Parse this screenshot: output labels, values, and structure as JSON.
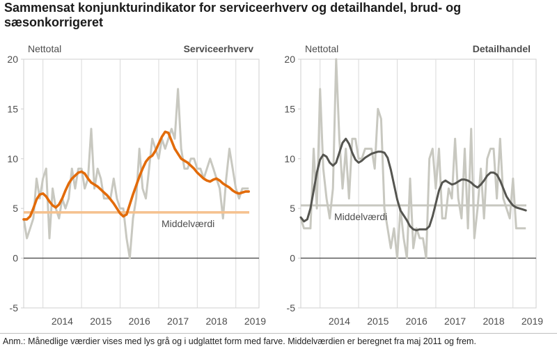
{
  "title": "Sammensat konjunkturindikator for serviceerhverv og detailhandel, brud- og sæsonkorrigeret",
  "note": "Anm.: Månedlige værdier vises med lys grå og i udglattet form med farve. Middelværdien er beregnet fra maj 2011 og frem.",
  "colors": {
    "raw": "#c8c8c0",
    "service_smooth": "#e26b0a",
    "service_mean": "#f5c18e",
    "retail_smooth": "#555550",
    "retail_mean": "#c8c8c0",
    "zero_line": "#4d4d4d",
    "grid": "#d9d9d9",
    "frame": "#cfcfcf",
    "text": "#4d4d4d"
  },
  "chart_data": [
    {
      "type": "line",
      "title": "Serviceerhverv",
      "ylabel": "Nettotal",
      "ylim": [
        -5,
        20
      ],
      "yticks": [
        -5,
        0,
        5,
        10,
        15,
        20
      ],
      "xlim": [
        2013.5,
        2019.6
      ],
      "xticks": [
        2014,
        2015,
        2016,
        2017,
        2018,
        2019
      ],
      "mean_label": "Middelværdi",
      "mean": 4.6,
      "series": [
        {
          "name": "Månedlige værdier",
          "x": [
            2013.5,
            2013.583,
            2013.667,
            2013.75,
            2013.833,
            2013.917,
            2014.0,
            2014.083,
            2014.167,
            2014.25,
            2014.333,
            2014.417,
            2014.5,
            2014.583,
            2014.667,
            2014.75,
            2014.833,
            2014.917,
            2015.0,
            2015.083,
            2015.167,
            2015.25,
            2015.333,
            2015.417,
            2015.5,
            2015.583,
            2015.667,
            2015.75,
            2015.833,
            2015.917,
            2016.0,
            2016.083,
            2016.167,
            2016.25,
            2016.333,
            2016.417,
            2016.5,
            2016.583,
            2016.667,
            2016.75,
            2016.833,
            2016.917,
            2017.0,
            2017.083,
            2017.167,
            2017.25,
            2017.333,
            2017.417,
            2017.5,
            2017.583,
            2017.667,
            2017.75,
            2017.833,
            2017.917,
            2018.0,
            2018.083,
            2018.167,
            2018.25,
            2018.333,
            2018.417,
            2018.5,
            2018.583,
            2018.667,
            2018.75,
            2018.833,
            2018.917,
            2019.0,
            2019.083,
            2019.167,
            2019.25,
            2019.333
          ],
          "values": [
            4,
            2,
            3,
            4,
            8,
            6,
            8,
            9,
            2,
            7,
            5,
            4,
            6,
            5,
            6,
            9,
            7,
            9,
            9,
            7,
            8,
            13,
            7,
            9,
            8,
            6,
            6,
            6,
            8,
            6,
            5,
            5,
            2,
            0,
            4,
            6,
            11,
            7,
            6,
            9,
            12,
            11,
            10,
            12,
            11,
            12,
            13,
            12,
            17,
            11,
            9,
            9,
            10,
            10,
            9,
            9,
            8,
            9,
            10,
            9,
            8,
            7,
            4,
            8,
            11,
            9,
            7,
            6,
            7,
            7,
            7
          ]
        },
        {
          "name": "Udglattet",
          "x": [
            2013.5,
            2013.583,
            2013.667,
            2013.75,
            2013.833,
            2013.917,
            2014.0,
            2014.083,
            2014.167,
            2014.25,
            2014.333,
            2014.417,
            2014.5,
            2014.583,
            2014.667,
            2014.75,
            2014.833,
            2014.917,
            2015.0,
            2015.083,
            2015.167,
            2015.25,
            2015.333,
            2015.417,
            2015.5,
            2015.583,
            2015.667,
            2015.75,
            2015.833,
            2015.917,
            2016.0,
            2016.083,
            2016.167,
            2016.25,
            2016.333,
            2016.417,
            2016.5,
            2016.583,
            2016.667,
            2016.75,
            2016.833,
            2016.917,
            2017.0,
            2017.083,
            2017.167,
            2017.25,
            2017.333,
            2017.417,
            2017.5,
            2017.583,
            2017.667,
            2017.75,
            2017.833,
            2017.917,
            2018.0,
            2018.083,
            2018.167,
            2018.25,
            2018.333,
            2018.417,
            2018.5,
            2018.583,
            2018.667,
            2018.75,
            2018.833,
            2018.917,
            2019.0,
            2019.083,
            2019.167,
            2019.25,
            2019.333
          ],
          "values": [
            3.9,
            3.9,
            4.2,
            5.0,
            5.9,
            6.4,
            6.5,
            6.2,
            5.7,
            5.3,
            5.1,
            5.4,
            6.0,
            6.8,
            7.5,
            8.0,
            8.3,
            8.6,
            8.7,
            8.5,
            8.0,
            7.6,
            7.4,
            7.2,
            6.9,
            6.6,
            6.3,
            5.9,
            5.5,
            5.0,
            4.5,
            4.2,
            4.4,
            5.4,
            6.4,
            7.3,
            8.2,
            9.0,
            9.7,
            10.1,
            10.3,
            10.8,
            11.5,
            12.2,
            12.7,
            12.6,
            11.8,
            11.0,
            10.5,
            10.0,
            9.8,
            9.6,
            9.3,
            9.0,
            8.6,
            8.3,
            8.0,
            7.8,
            7.7,
            7.9,
            8.0,
            7.8,
            7.5,
            7.3,
            7.1,
            6.8,
            6.6,
            6.5,
            6.6,
            6.7,
            6.7
          ]
        }
      ]
    },
    {
      "type": "line",
      "title": "Detailhandel",
      "ylabel": "Nettotal",
      "ylim": [
        -5,
        20
      ],
      "yticks": [
        -5,
        0,
        5,
        10,
        15,
        20
      ],
      "xlim": [
        2013.5,
        2019.6
      ],
      "xticks": [
        2014,
        2015,
        2016,
        2017,
        2018,
        2019
      ],
      "mean_label": "Middelværdi",
      "mean": 5.3,
      "series": [
        {
          "name": "Månedlige værdier",
          "x": [
            2013.5,
            2013.583,
            2013.667,
            2013.75,
            2013.833,
            2013.917,
            2014.0,
            2014.083,
            2014.167,
            2014.25,
            2014.333,
            2014.417,
            2014.5,
            2014.583,
            2014.667,
            2014.75,
            2014.833,
            2014.917,
            2015.0,
            2015.083,
            2015.167,
            2015.25,
            2015.333,
            2015.417,
            2015.5,
            2015.583,
            2015.667,
            2015.75,
            2015.833,
            2015.917,
            2016.0,
            2016.083,
            2016.167,
            2016.25,
            2016.333,
            2016.417,
            2016.5,
            2016.583,
            2016.667,
            2016.75,
            2016.833,
            2016.917,
            2017.0,
            2017.083,
            2017.167,
            2017.25,
            2017.333,
            2017.417,
            2017.5,
            2017.583,
            2017.667,
            2017.75,
            2017.833,
            2017.917,
            2018.0,
            2018.083,
            2018.167,
            2018.25,
            2018.333,
            2018.417,
            2018.5,
            2018.583,
            2018.667,
            2018.75,
            2018.833,
            2018.917,
            2019.0,
            2019.083,
            2019.167,
            2019.25,
            2019.333
          ],
          "values": [
            4,
            3,
            3,
            3,
            11,
            5,
            17,
            9,
            6,
            4,
            7,
            20,
            12,
            7,
            11,
            6,
            12,
            12,
            10,
            10,
            11,
            11,
            11,
            9,
            15,
            14,
            5,
            3,
            1,
            3,
            0,
            5,
            2,
            0,
            8,
            1,
            3,
            2,
            2,
            0,
            10,
            11,
            7,
            11,
            4,
            4,
            7,
            6,
            12,
            6,
            4,
            11,
            3,
            13,
            2,
            5,
            9,
            4,
            10,
            11,
            11,
            6,
            12,
            6,
            5,
            4,
            8,
            3,
            3,
            3,
            3
          ]
        },
        {
          "name": "Udglattet",
          "x": [
            2013.5,
            2013.583,
            2013.667,
            2013.75,
            2013.833,
            2013.917,
            2014.0,
            2014.083,
            2014.167,
            2014.25,
            2014.333,
            2014.417,
            2014.5,
            2014.583,
            2014.667,
            2014.75,
            2014.833,
            2014.917,
            2015.0,
            2015.083,
            2015.167,
            2015.25,
            2015.333,
            2015.417,
            2015.5,
            2015.583,
            2015.667,
            2015.75,
            2015.833,
            2015.917,
            2016.0,
            2016.083,
            2016.167,
            2016.25,
            2016.333,
            2016.417,
            2016.5,
            2016.583,
            2016.667,
            2016.75,
            2016.833,
            2016.917,
            2017.0,
            2017.083,
            2017.167,
            2017.25,
            2017.333,
            2017.417,
            2017.5,
            2017.583,
            2017.667,
            2017.75,
            2017.833,
            2017.917,
            2018.0,
            2018.083,
            2018.167,
            2018.25,
            2018.333,
            2018.417,
            2018.5,
            2018.583,
            2018.667,
            2018.75,
            2018.833,
            2018.917,
            2019.0,
            2019.083,
            2019.167,
            2019.25,
            2019.333
          ],
          "values": [
            4.1,
            3.7,
            3.9,
            5.0,
            6.8,
            8.6,
            9.9,
            10.4,
            10.2,
            9.6,
            9.3,
            9.6,
            10.6,
            11.6,
            12.0,
            11.5,
            10.6,
            9.9,
            9.6,
            9.8,
            10.1,
            10.3,
            10.5,
            10.6,
            10.7,
            10.7,
            10.6,
            10.1,
            8.9,
            7.4,
            5.9,
            4.8,
            4.3,
            3.8,
            3.2,
            2.9,
            2.8,
            2.9,
            2.9,
            2.9,
            3.2,
            4.2,
            5.5,
            6.8,
            7.6,
            7.8,
            7.6,
            7.4,
            7.5,
            7.7,
            7.9,
            7.9,
            7.8,
            7.6,
            7.3,
            7.1,
            7.4,
            7.8,
            8.3,
            8.6,
            8.6,
            8.4,
            7.8,
            7.0,
            6.2,
            5.7,
            5.3,
            5.1,
            5.0,
            4.9,
            4.8
          ]
        }
      ]
    }
  ]
}
